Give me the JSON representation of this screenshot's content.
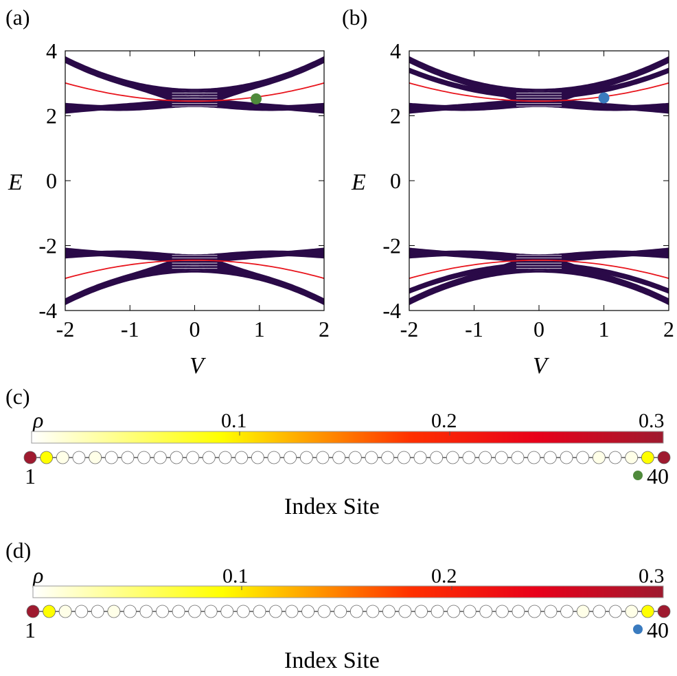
{
  "chart_data": [
    {
      "panel_label": "(a)",
      "type": "line",
      "xlabel": "V",
      "ylabel": "E",
      "xlim": [
        -2,
        2
      ],
      "ylim": [
        -4,
        4
      ],
      "xticks": [
        -2,
        -1,
        0,
        1,
        2
      ],
      "yticks": [
        -4,
        -2,
        0,
        2,
        4
      ],
      "xtick_labels": [
        "-2",
        "-1",
        "0",
        "1",
        "2"
      ],
      "ytick_labels": [
        "-4",
        "-2",
        "0",
        "2",
        "4"
      ],
      "series": [
        {
          "name": "bulk bands",
          "color": "#2a0a48",
          "description_values": {
            "upper_inner_edge": [
              2.3,
              2.1,
              2.3
            ],
            "upper_outer_edge": [
              3.8,
              2.8,
              3.8
            ]
          }
        },
        {
          "name": "edge state",
          "color": "#e8141c",
          "x": [
            -2,
            -1,
            0,
            1,
            2
          ],
          "values": [
            3.0,
            2.55,
            2.45,
            2.55,
            3.0
          ]
        }
      ],
      "marker": {
        "x": 0.95,
        "y": 2.52,
        "color": "#4f8a3b"
      }
    },
    {
      "panel_label": "(b)",
      "type": "line",
      "xlabel": "V",
      "ylabel": "E",
      "xlim": [
        -2,
        2
      ],
      "ylim": [
        -4,
        4
      ],
      "xticks": [
        -2,
        -1,
        0,
        1,
        2
      ],
      "yticks": [
        -4,
        -2,
        0,
        2,
        4
      ],
      "xtick_labels": [
        "-2",
        "-1",
        "0",
        "1",
        "2"
      ],
      "ytick_labels": [
        "-4",
        "-2",
        "0",
        "2",
        "4"
      ],
      "series": [
        {
          "name": "bulk bands",
          "color": "#2a0a48"
        },
        {
          "name": "edge state",
          "color": "#e8141c",
          "x": [
            -2,
            -1,
            0,
            1,
            2
          ],
          "values": [
            3.0,
            2.55,
            2.45,
            2.55,
            3.0
          ]
        }
      ],
      "marker": {
        "x": 1.0,
        "y": 2.55,
        "color": "#3a7bbf"
      }
    },
    {
      "panel_label": "(c)",
      "type": "heatmap",
      "colorbar_label": "ρ",
      "colorbar_ticks": [
        "0.1",
        "0.2",
        "0.3"
      ],
      "colorbar_range": [
        0,
        0.3
      ],
      "xlabel": "Index Site",
      "site_first_label": "1",
      "site_last_label": "40",
      "marker_color": "#4f8a3b",
      "site_values": [
        0.3,
        0.06,
        0.01,
        0,
        0.01,
        0,
        0,
        0,
        0,
        0,
        0,
        0,
        0,
        0,
        0,
        0,
        0,
        0,
        0,
        0,
        0,
        0,
        0,
        0,
        0,
        0,
        0,
        0,
        0,
        0,
        0,
        0,
        0,
        0,
        0,
        0.01,
        0,
        0.01,
        0.06,
        0.3
      ]
    },
    {
      "panel_label": "(d)",
      "type": "heatmap",
      "colorbar_label": "ρ",
      "colorbar_ticks": [
        "0.1",
        "0.2",
        "0.3"
      ],
      "colorbar_range": [
        0,
        0.3
      ],
      "xlabel": "Index Site",
      "site_first_label": "1",
      "site_last_label": "40",
      "marker_color": "#3a7bbf",
      "site_values": [
        0.3,
        0.06,
        0.01,
        0,
        0,
        0.01,
        0,
        0,
        0,
        0,
        0,
        0,
        0,
        0,
        0,
        0,
        0,
        0,
        0,
        0,
        0,
        0,
        0,
        0,
        0,
        0,
        0,
        0,
        0,
        0,
        0,
        0,
        0,
        0,
        0.01,
        0,
        0,
        0.01,
        0.06,
        0.3
      ]
    }
  ]
}
